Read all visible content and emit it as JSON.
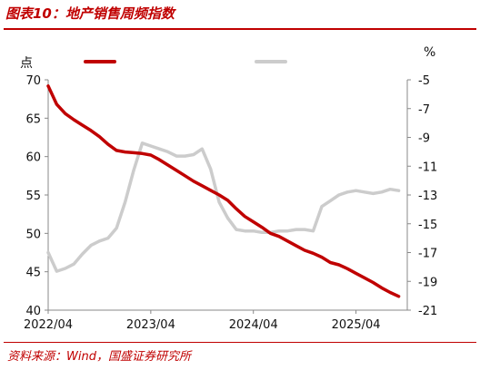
{
  "header": {
    "title": "图表10：地产销售周频指数"
  },
  "footer": {
    "source": "资料来源：Wind，国盛证券研究所"
  },
  "colors": {
    "accent": "#c00000",
    "series_primary": "#c00000",
    "series_secondary": "#cccccc"
  },
  "chart_data": {
    "type": "line",
    "title": "",
    "left_unit": "点",
    "right_unit": "%",
    "x_tick_labels": [
      "2022/04",
      "2023/04",
      "2024/04",
      "2025/04"
    ],
    "y_left": {
      "lim": [
        40,
        70
      ],
      "ticks": [
        40,
        45,
        50,
        55,
        60,
        65,
        70
      ]
    },
    "y_right": {
      "lim": [
        -21,
        -5
      ],
      "ticks": [
        -21,
        -19,
        -17,
        -15,
        -13,
        -11,
        -9,
        -7,
        -5
      ]
    },
    "grid": false,
    "legend_position": "top",
    "series": [
      {
        "axis": "left",
        "color": "#c00000",
        "points": [
          [
            "2022/04",
            69.2
          ],
          [
            "2022/05",
            66.8
          ],
          [
            "2022/06",
            65.6
          ],
          [
            "2022/07",
            64.8
          ],
          [
            "2022/08",
            64.1
          ],
          [
            "2022/09",
            63.4
          ],
          [
            "2022/10",
            62.6
          ],
          [
            "2022/11",
            61.6
          ],
          [
            "2022/12",
            60.8
          ],
          [
            "2023/01",
            60.6
          ],
          [
            "2023/02",
            60.5
          ],
          [
            "2023/03",
            60.4
          ],
          [
            "2023/04",
            60.2
          ],
          [
            "2023/05",
            59.6
          ],
          [
            "2023/06",
            58.9
          ],
          [
            "2023/07",
            58.2
          ],
          [
            "2023/08",
            57.5
          ],
          [
            "2023/09",
            56.8
          ],
          [
            "2023/10",
            56.2
          ],
          [
            "2023/11",
            55.6
          ],
          [
            "2023/12",
            55.0
          ],
          [
            "2024/01",
            54.3
          ],
          [
            "2024/02",
            53.2
          ],
          [
            "2024/03",
            52.2
          ],
          [
            "2024/04",
            51.5
          ],
          [
            "2024/05",
            50.8
          ],
          [
            "2024/06",
            50.0
          ],
          [
            "2024/07",
            49.6
          ],
          [
            "2024/08",
            49.0
          ],
          [
            "2024/09",
            48.4
          ],
          [
            "2024/10",
            47.8
          ],
          [
            "2024/11",
            47.4
          ],
          [
            "2024/12",
            46.9
          ],
          [
            "2025/01",
            46.2
          ],
          [
            "2025/02",
            45.9
          ],
          [
            "2025/03",
            45.4
          ],
          [
            "2025/04",
            44.8
          ],
          [
            "2025/05",
            44.2
          ],
          [
            "2025/06",
            43.6
          ],
          [
            "2025/07",
            42.9
          ],
          [
            "2025/08",
            42.3
          ],
          [
            "2025/09",
            41.8
          ]
        ]
      },
      {
        "axis": "right",
        "color": "#cccccc",
        "points": [
          [
            "2022/04",
            -17.0
          ],
          [
            "2022/05",
            -18.3
          ],
          [
            "2022/06",
            -18.1
          ],
          [
            "2022/07",
            -17.8
          ],
          [
            "2022/08",
            -17.1
          ],
          [
            "2022/09",
            -16.5
          ],
          [
            "2022/10",
            -16.2
          ],
          [
            "2022/11",
            -16.0
          ],
          [
            "2022/12",
            -15.3
          ],
          [
            "2023/01",
            -13.5
          ],
          [
            "2023/02",
            -11.3
          ],
          [
            "2023/03",
            -9.4
          ],
          [
            "2023/04",
            -9.6
          ],
          [
            "2023/05",
            -9.8
          ],
          [
            "2023/06",
            -10.0
          ],
          [
            "2023/07",
            -10.3
          ],
          [
            "2023/08",
            -10.3
          ],
          [
            "2023/09",
            -10.2
          ],
          [
            "2023/10",
            -9.8
          ],
          [
            "2023/11",
            -11.2
          ],
          [
            "2023/12",
            -13.5
          ],
          [
            "2024/01",
            -14.6
          ],
          [
            "2024/02",
            -15.4
          ],
          [
            "2024/03",
            -15.5
          ],
          [
            "2024/04",
            -15.5
          ],
          [
            "2024/05",
            -15.6
          ],
          [
            "2024/06",
            -15.6
          ],
          [
            "2024/07",
            -15.5
          ],
          [
            "2024/08",
            -15.5
          ],
          [
            "2024/09",
            -15.4
          ],
          [
            "2024/10",
            -15.4
          ],
          [
            "2024/11",
            -15.5
          ],
          [
            "2024/12",
            -13.8
          ],
          [
            "2025/01",
            -13.4
          ],
          [
            "2025/02",
            -13.0
          ],
          [
            "2025/03",
            -12.8
          ],
          [
            "2025/04",
            -12.7
          ],
          [
            "2025/05",
            -12.8
          ],
          [
            "2025/06",
            -12.9
          ],
          [
            "2025/07",
            -12.8
          ],
          [
            "2025/08",
            -12.6
          ],
          [
            "2025/09",
            -12.7
          ]
        ]
      }
    ]
  }
}
